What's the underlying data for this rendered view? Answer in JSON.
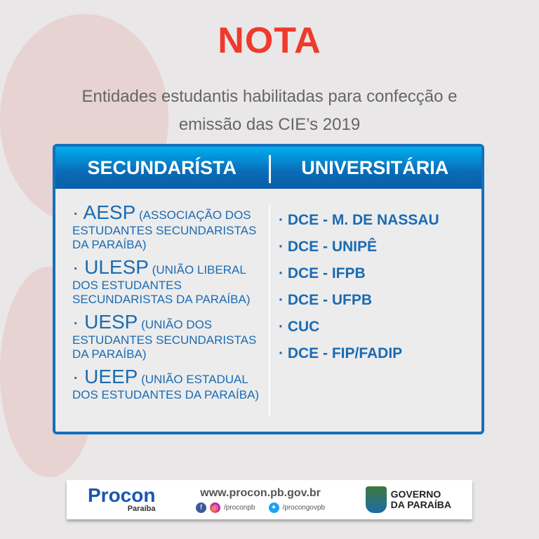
{
  "title": "NOTA",
  "subtitle": [
    "Entidades estudantis habilitadas para confecção e",
    "emissão das CIE’s 2019"
  ],
  "table": {
    "headers": [
      "SECUNDARÍSTA",
      "UNIVERSITÁRIA"
    ],
    "secundarista": [
      {
        "acronym": "· AESP",
        "desc": " (ASSOCIAÇÃO DOS ESTUDANTES SECUNDARISTAS DA PARAÍBA)"
      },
      {
        "acronym": "· ULESP",
        "desc": " (UNIÃO LIBERAL DOS ESTUDANTES SECUNDARISTAS DA PARAÍBA)"
      },
      {
        "acronym": "· UESP",
        "desc": " (UNIÃO DOS ESTUDANTES SECUNDARISTAS DA PARAÍBA)"
      },
      {
        "acronym": "· UEEP",
        "desc": " (UNIÃO ESTADUAL DOS ESTUDANTES DA PARAÍBA)"
      }
    ],
    "universitaria": [
      "· DCE - M. DE NASSAU",
      "· DCE - UNIPÊ",
      "· DCE - IFPB",
      "· DCE - UFPB",
      "· CUC",
      "· DCE - FIP/FADIP"
    ]
  },
  "footer": {
    "logo": "Procon",
    "logo_sub": "Paraíba",
    "website": "www.procon.pb.gov.br",
    "instagram": "/proconpb",
    "twitter": "/procongovpb",
    "gov_line1": "GOVERNO",
    "gov_line2": "DA PARAÍBA",
    "icons": [
      "facebook-icon",
      "instagram-icon",
      "twitter-icon"
    ]
  },
  "colors": {
    "title": "#ee3a2c",
    "accent": "#1570bb"
  }
}
